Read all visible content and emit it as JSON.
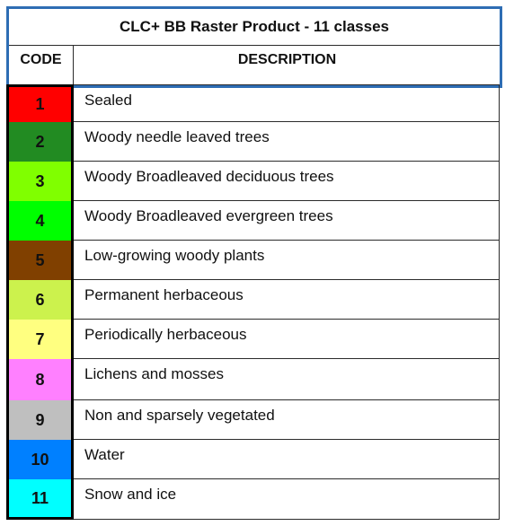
{
  "table": {
    "title": "CLC+ BB Raster Product - 11 classes",
    "header_code": "CODE",
    "header_description": "DESCRIPTION",
    "header_border_color": "#2e6db4",
    "rows": [
      {
        "code": "1",
        "description": "Sealed",
        "color": "#ff0000"
      },
      {
        "code": "2",
        "description": "Woody needle leaved trees",
        "color": "#228b22"
      },
      {
        "code": "3",
        "description": "Woody Broadleaved deciduous trees",
        "color": "#80ff00"
      },
      {
        "code": "4",
        "description": "Woody Broadleaved evergreen trees",
        "color": "#00ff00"
      },
      {
        "code": "5",
        "description": "Low-growing woody plants",
        "color": "#804000"
      },
      {
        "code": "6",
        "description": "Permanent herbaceous",
        "color": "#ccf24d"
      },
      {
        "code": "7",
        "description": "Periodically herbaceous",
        "color": "#ffff80"
      },
      {
        "code": "8",
        "description": "Lichens and mosses",
        "color": "#ff80ff"
      },
      {
        "code": "9",
        "description": "Non and sparsely vegetated",
        "color": "#bfbfbf"
      },
      {
        "code": "10",
        "description": "Water",
        "color": "#0080ff"
      },
      {
        "code": "11",
        "description": "Snow and ice",
        "color": "#00ffff"
      }
    ]
  }
}
